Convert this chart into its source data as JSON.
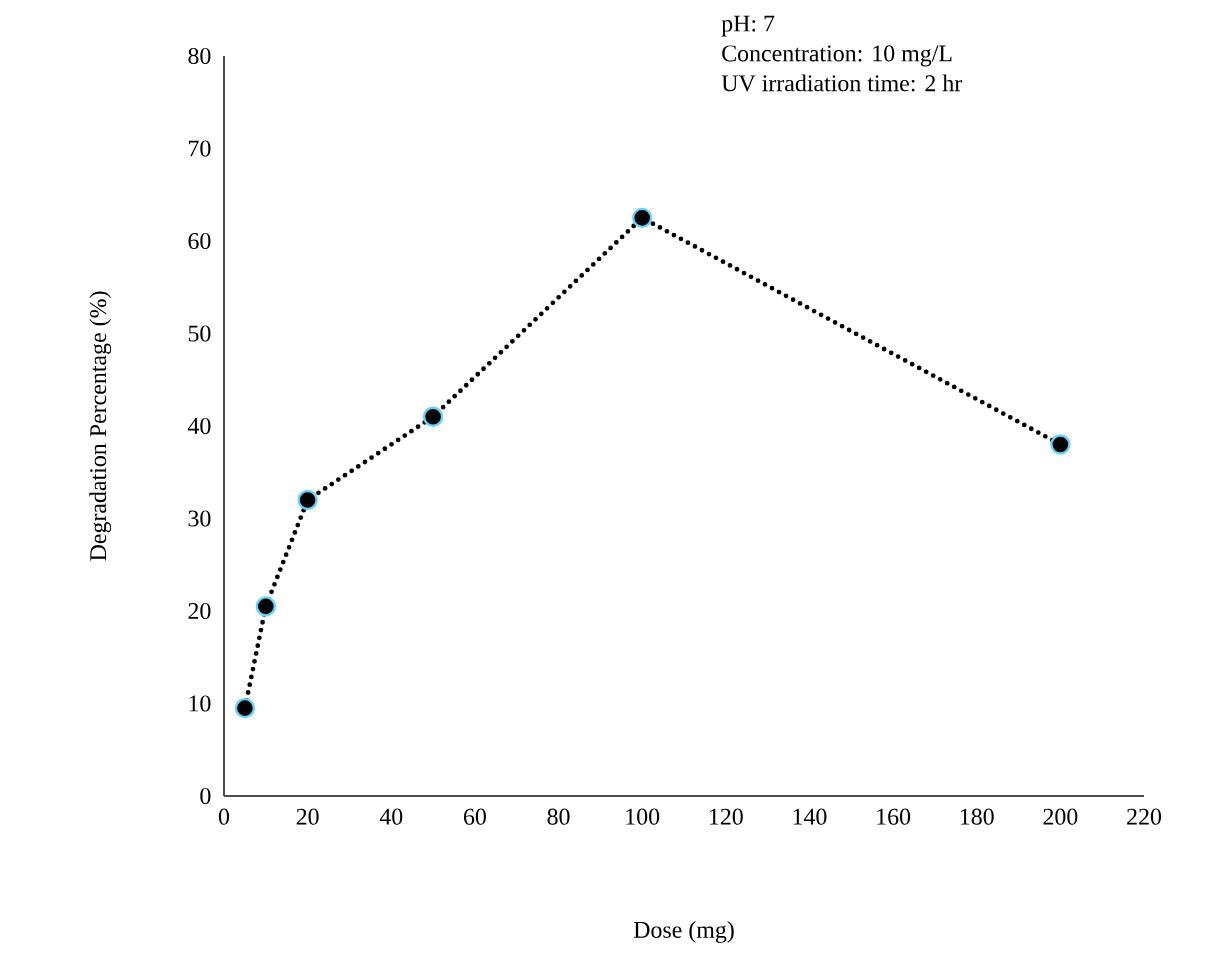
{
  "chart_data": {
    "type": "line",
    "xlabel": "Dose (mg)",
    "ylabel": "Degradation Percentage (%)",
    "annotations": [
      "pH: 7",
      "Concentration: 10 mg/L",
      "UV irradiation time: 2 hr"
    ],
    "x": [
      5,
      10,
      20,
      50,
      100,
      200
    ],
    "series": [
      {
        "color": "#000000",
        "values": [
          9.5,
          20.5,
          32,
          41,
          62.5,
          38
        ]
      }
    ],
    "marker": "circle",
    "line_style": "dotted",
    "xlim": [
      0,
      220
    ],
    "xticks": [
      0,
      20,
      40,
      60,
      80,
      100,
      120,
      140,
      160,
      180,
      200,
      220
    ],
    "ylim": [
      0,
      80
    ],
    "yticks": [
      0,
      10,
      20,
      30,
      40,
      50,
      60,
      70,
      80
    ]
  }
}
